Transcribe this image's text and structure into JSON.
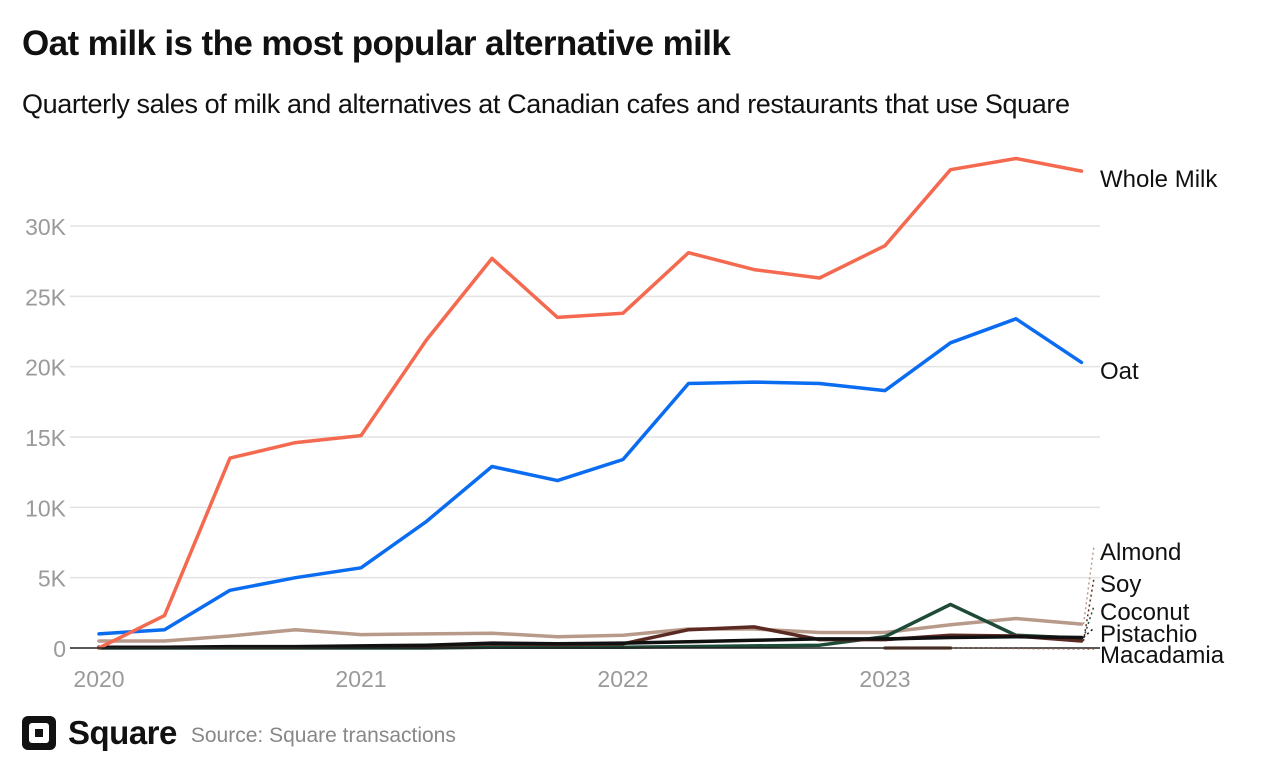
{
  "chart_data": {
    "type": "line",
    "title": "Oat milk is the most popular alternative milk",
    "subtitle": "Quarterly sales of milk and alternatives at Canadian cafes and restaurants that use Square",
    "xlabel": "",
    "ylabel": "",
    "x": [
      "2020 Q1",
      "2020 Q2",
      "2020 Q3",
      "2020 Q4",
      "2021 Q1",
      "2021 Q2",
      "2021 Q3",
      "2021 Q4",
      "2022 Q1",
      "2022 Q2",
      "2022 Q3",
      "2022 Q4",
      "2023 Q1",
      "2023 Q2",
      "2023 Q3",
      "2023 Q4"
    ],
    "x_tick_labels": [
      "2020",
      "2021",
      "2022",
      "2023"
    ],
    "y_tick_labels": [
      "0",
      "5K",
      "10K",
      "15K",
      "20K",
      "25K",
      "30K"
    ],
    "ylim": [
      0,
      35000
    ],
    "grid": true,
    "legend": "direct labels at right",
    "series": [
      {
        "name": "Whole Milk",
        "color": "#f4694f",
        "values": [
          0,
          2300,
          13500,
          14600,
          15100,
          21900,
          27700,
          23500,
          23800,
          28100,
          26900,
          26300,
          28600,
          34000,
          34800,
          33900
        ]
      },
      {
        "name": "Oat",
        "color": "#0a6cf0",
        "values": [
          1000,
          1300,
          4100,
          5000,
          5700,
          9000,
          12900,
          11900,
          13400,
          18800,
          18900,
          18800,
          18300,
          21700,
          23400,
          20300
        ]
      },
      {
        "name": "Almond",
        "color": "#b89a8b",
        "values": [
          500,
          500,
          850,
          1300,
          950,
          1000,
          1050,
          800,
          900,
          1350,
          1350,
          1100,
          1100,
          1650,
          2100,
          1700
        ]
      },
      {
        "name": "Soy",
        "color": "#5b2a22",
        "values": [
          50,
          50,
          50,
          50,
          100,
          150,
          300,
          250,
          300,
          1300,
          1500,
          600,
          600,
          900,
          850,
          500
        ]
      },
      {
        "name": "Coconut",
        "color": "#1e4a38",
        "values": [
          0,
          0,
          0,
          0,
          0,
          0,
          50,
          50,
          50,
          100,
          150,
          200,
          800,
          3100,
          900,
          700
        ]
      },
      {
        "name": "Pistachio",
        "color": "#111111",
        "values": [
          50,
          50,
          100,
          100,
          150,
          200,
          350,
          300,
          350,
          450,
          550,
          650,
          650,
          750,
          800,
          750
        ]
      },
      {
        "name": "Macadamia",
        "color": "#8a5a48",
        "values": [
          null,
          null,
          null,
          null,
          null,
          null,
          null,
          null,
          null,
          null,
          null,
          null,
          0,
          0,
          null,
          null
        ]
      }
    ]
  },
  "footer": {
    "brand": "Square",
    "source": "Source: Square transactions"
  },
  "colors": {
    "grid": "#e3e3e3",
    "axis": "#222222",
    "tick_text": "#9a9a9a"
  }
}
